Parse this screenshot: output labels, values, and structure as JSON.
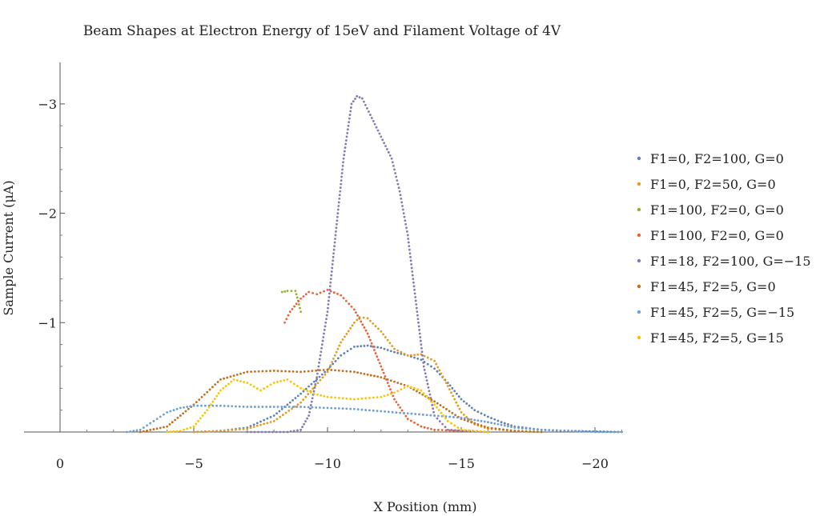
{
  "chart_data": {
    "type": "scatter",
    "title": "Beam Shapes at Electron Energy of 15eV and Filament Voltage of 4V",
    "xlabel": "X Position (mm)",
    "ylabel": "Sample Current (μA)",
    "xlim": [
      0,
      -21
    ],
    "ylim": [
      0,
      -3.3
    ],
    "x_ticks": [
      {
        "value": 0,
        "label": "0"
      },
      {
        "value": -5,
        "label": "−5"
      },
      {
        "value": -10,
        "label": "−10"
      },
      {
        "value": -15,
        "label": "−15"
      },
      {
        "value": -20,
        "label": "−20"
      }
    ],
    "y_ticks": [
      {
        "value": -1,
        "label": "−1"
      },
      {
        "value": -2,
        "label": "−2"
      },
      {
        "value": -3,
        "label": "−3"
      }
    ],
    "legend_position": "right",
    "grid": false,
    "series": [
      {
        "name": "F1=0, F2=100, G=0",
        "color": "#5e81b5",
        "points": [
          [
            -5,
            0
          ],
          [
            -6,
            -0.01
          ],
          [
            -7,
            -0.04
          ],
          [
            -8,
            -0.15
          ],
          [
            -9,
            -0.35
          ],
          [
            -10,
            -0.57
          ],
          [
            -10.5,
            -0.7
          ],
          [
            -11,
            -0.78
          ],
          [
            -11.5,
            -0.79
          ],
          [
            -12,
            -0.77
          ],
          [
            -12.5,
            -0.73
          ],
          [
            -13,
            -0.7
          ],
          [
            -13.5,
            -0.66
          ],
          [
            -14,
            -0.58
          ],
          [
            -14.5,
            -0.45
          ],
          [
            -15,
            -0.3
          ],
          [
            -15.5,
            -0.2
          ],
          [
            -16,
            -0.14
          ],
          [
            -16.5,
            -0.09
          ],
          [
            -17,
            -0.05
          ],
          [
            -18,
            -0.02
          ],
          [
            -19,
            -0.01
          ],
          [
            -21,
            0
          ]
        ]
      },
      {
        "name": "F1=0, F2=50, G=0",
        "color": "#e19c24",
        "points": [
          [
            -5,
            0
          ],
          [
            -6,
            -0.01
          ],
          [
            -7,
            -0.03
          ],
          [
            -8,
            -0.1
          ],
          [
            -9,
            -0.27
          ],
          [
            -10,
            -0.55
          ],
          [
            -10.5,
            -0.82
          ],
          [
            -11,
            -1.0
          ],
          [
            -11.2,
            -1.05
          ],
          [
            -11.5,
            -1.04
          ],
          [
            -12,
            -0.92
          ],
          [
            -12.5,
            -0.76
          ],
          [
            -13,
            -0.7
          ],
          [
            -13.5,
            -0.71
          ],
          [
            -14,
            -0.65
          ],
          [
            -14.5,
            -0.42
          ],
          [
            -15,
            -0.18
          ],
          [
            -15.5,
            -0.07
          ],
          [
            -16,
            -0.03
          ],
          [
            -17,
            -0.01
          ],
          [
            -18,
            0
          ]
        ]
      },
      {
        "name": "F1=100, F2=0, G=0",
        "color": "#8fb032",
        "points": [
          [
            -8.3,
            -1.28
          ],
          [
            -8.5,
            -1.29
          ],
          [
            -8.8,
            -1.29
          ],
          [
            -8.9,
            -1.2
          ],
          [
            -9.0,
            -1.1
          ]
        ]
      },
      {
        "name": "F1=100, F2=0, G=0",
        "color": "#eb6235",
        "points": [
          [
            -8.4,
            -1.0
          ],
          [
            -8.6,
            -1.1
          ],
          [
            -9,
            -1.22
          ],
          [
            -9.3,
            -1.28
          ],
          [
            -9.6,
            -1.26
          ],
          [
            -10,
            -1.3
          ],
          [
            -10.5,
            -1.25
          ],
          [
            -11,
            -1.12
          ],
          [
            -11.5,
            -0.9
          ],
          [
            -12,
            -0.6
          ],
          [
            -12.5,
            -0.3
          ],
          [
            -13,
            -0.12
          ],
          [
            -13.5,
            -0.05
          ],
          [
            -14,
            -0.02
          ],
          [
            -15,
            -0.01
          ],
          [
            -16,
            0
          ]
        ]
      },
      {
        "name": "F1=18, F2=100, G=−15",
        "color": "#8778b3",
        "points": [
          [
            -7,
            0
          ],
          [
            -8.5,
            0
          ],
          [
            -9,
            -0.02
          ],
          [
            -9.3,
            -0.15
          ],
          [
            -9.6,
            -0.5
          ],
          [
            -10,
            -1.1
          ],
          [
            -10.3,
            -1.8
          ],
          [
            -10.6,
            -2.5
          ],
          [
            -10.9,
            -3.0
          ],
          [
            -11.1,
            -3.07
          ],
          [
            -11.3,
            -3.05
          ],
          [
            -11.6,
            -2.9
          ],
          [
            -12,
            -2.7
          ],
          [
            -12.4,
            -2.5
          ],
          [
            -12.7,
            -2.2
          ],
          [
            -13,
            -1.8
          ],
          [
            -13.3,
            -1.2
          ],
          [
            -13.6,
            -0.6
          ],
          [
            -14,
            -0.15
          ],
          [
            -14.5,
            -0.02
          ],
          [
            -16,
            0
          ]
        ]
      },
      {
        "name": "F1=45, F2=5, G=0",
        "color": "#c56e1a",
        "points": [
          [
            -3,
            0
          ],
          [
            -4,
            -0.05
          ],
          [
            -5,
            -0.25
          ],
          [
            -6,
            -0.48
          ],
          [
            -7,
            -0.55
          ],
          [
            -8,
            -0.56
          ],
          [
            -9,
            -0.55
          ],
          [
            -10,
            -0.57
          ],
          [
            -11,
            -0.55
          ],
          [
            -12,
            -0.5
          ],
          [
            -13,
            -0.42
          ],
          [
            -14,
            -0.28
          ],
          [
            -15,
            -0.12
          ],
          [
            -16,
            -0.04
          ],
          [
            -17,
            -0.01
          ],
          [
            -18,
            0
          ]
        ]
      },
      {
        "name": "F1=45, F2=5, G=−15",
        "color": "#6c9fcf",
        "points": [
          [
            -2.5,
            0
          ],
          [
            -3,
            -0.02
          ],
          [
            -3.5,
            -0.1
          ],
          [
            -4,
            -0.18
          ],
          [
            -4.5,
            -0.22
          ],
          [
            -5,
            -0.24
          ],
          [
            -6,
            -0.24
          ],
          [
            -7,
            -0.23
          ],
          [
            -8,
            -0.23
          ],
          [
            -9,
            -0.23
          ],
          [
            -10,
            -0.22
          ],
          [
            -11,
            -0.21
          ],
          [
            -12,
            -0.19
          ],
          [
            -13,
            -0.17
          ],
          [
            -14,
            -0.15
          ],
          [
            -15,
            -0.13
          ],
          [
            -16,
            -0.09
          ],
          [
            -17,
            -0.04
          ],
          [
            -18,
            -0.02
          ],
          [
            -19,
            -0.01
          ],
          [
            -20,
            0
          ],
          [
            -21,
            0
          ]
        ]
      },
      {
        "name": "F1=45, F2=5, G=15",
        "color": "#fdc300",
        "points": [
          [
            -4,
            0
          ],
          [
            -4.5,
            -0.01
          ],
          [
            -5,
            -0.05
          ],
          [
            -5.5,
            -0.2
          ],
          [
            -6,
            -0.38
          ],
          [
            -6.5,
            -0.48
          ],
          [
            -7,
            -0.45
          ],
          [
            -7.5,
            -0.38
          ],
          [
            -8,
            -0.45
          ],
          [
            -8.5,
            -0.48
          ],
          [
            -9,
            -0.4
          ],
          [
            -9.5,
            -0.35
          ],
          [
            -10,
            -0.32
          ],
          [
            -11,
            -0.3
          ],
          [
            -12,
            -0.32
          ],
          [
            -12.5,
            -0.36
          ],
          [
            -13,
            -0.42
          ],
          [
            -13.5,
            -0.38
          ],
          [
            -14,
            -0.25
          ],
          [
            -14.5,
            -0.1
          ],
          [
            -15,
            -0.02
          ],
          [
            -16,
            0
          ]
        ]
      }
    ]
  }
}
